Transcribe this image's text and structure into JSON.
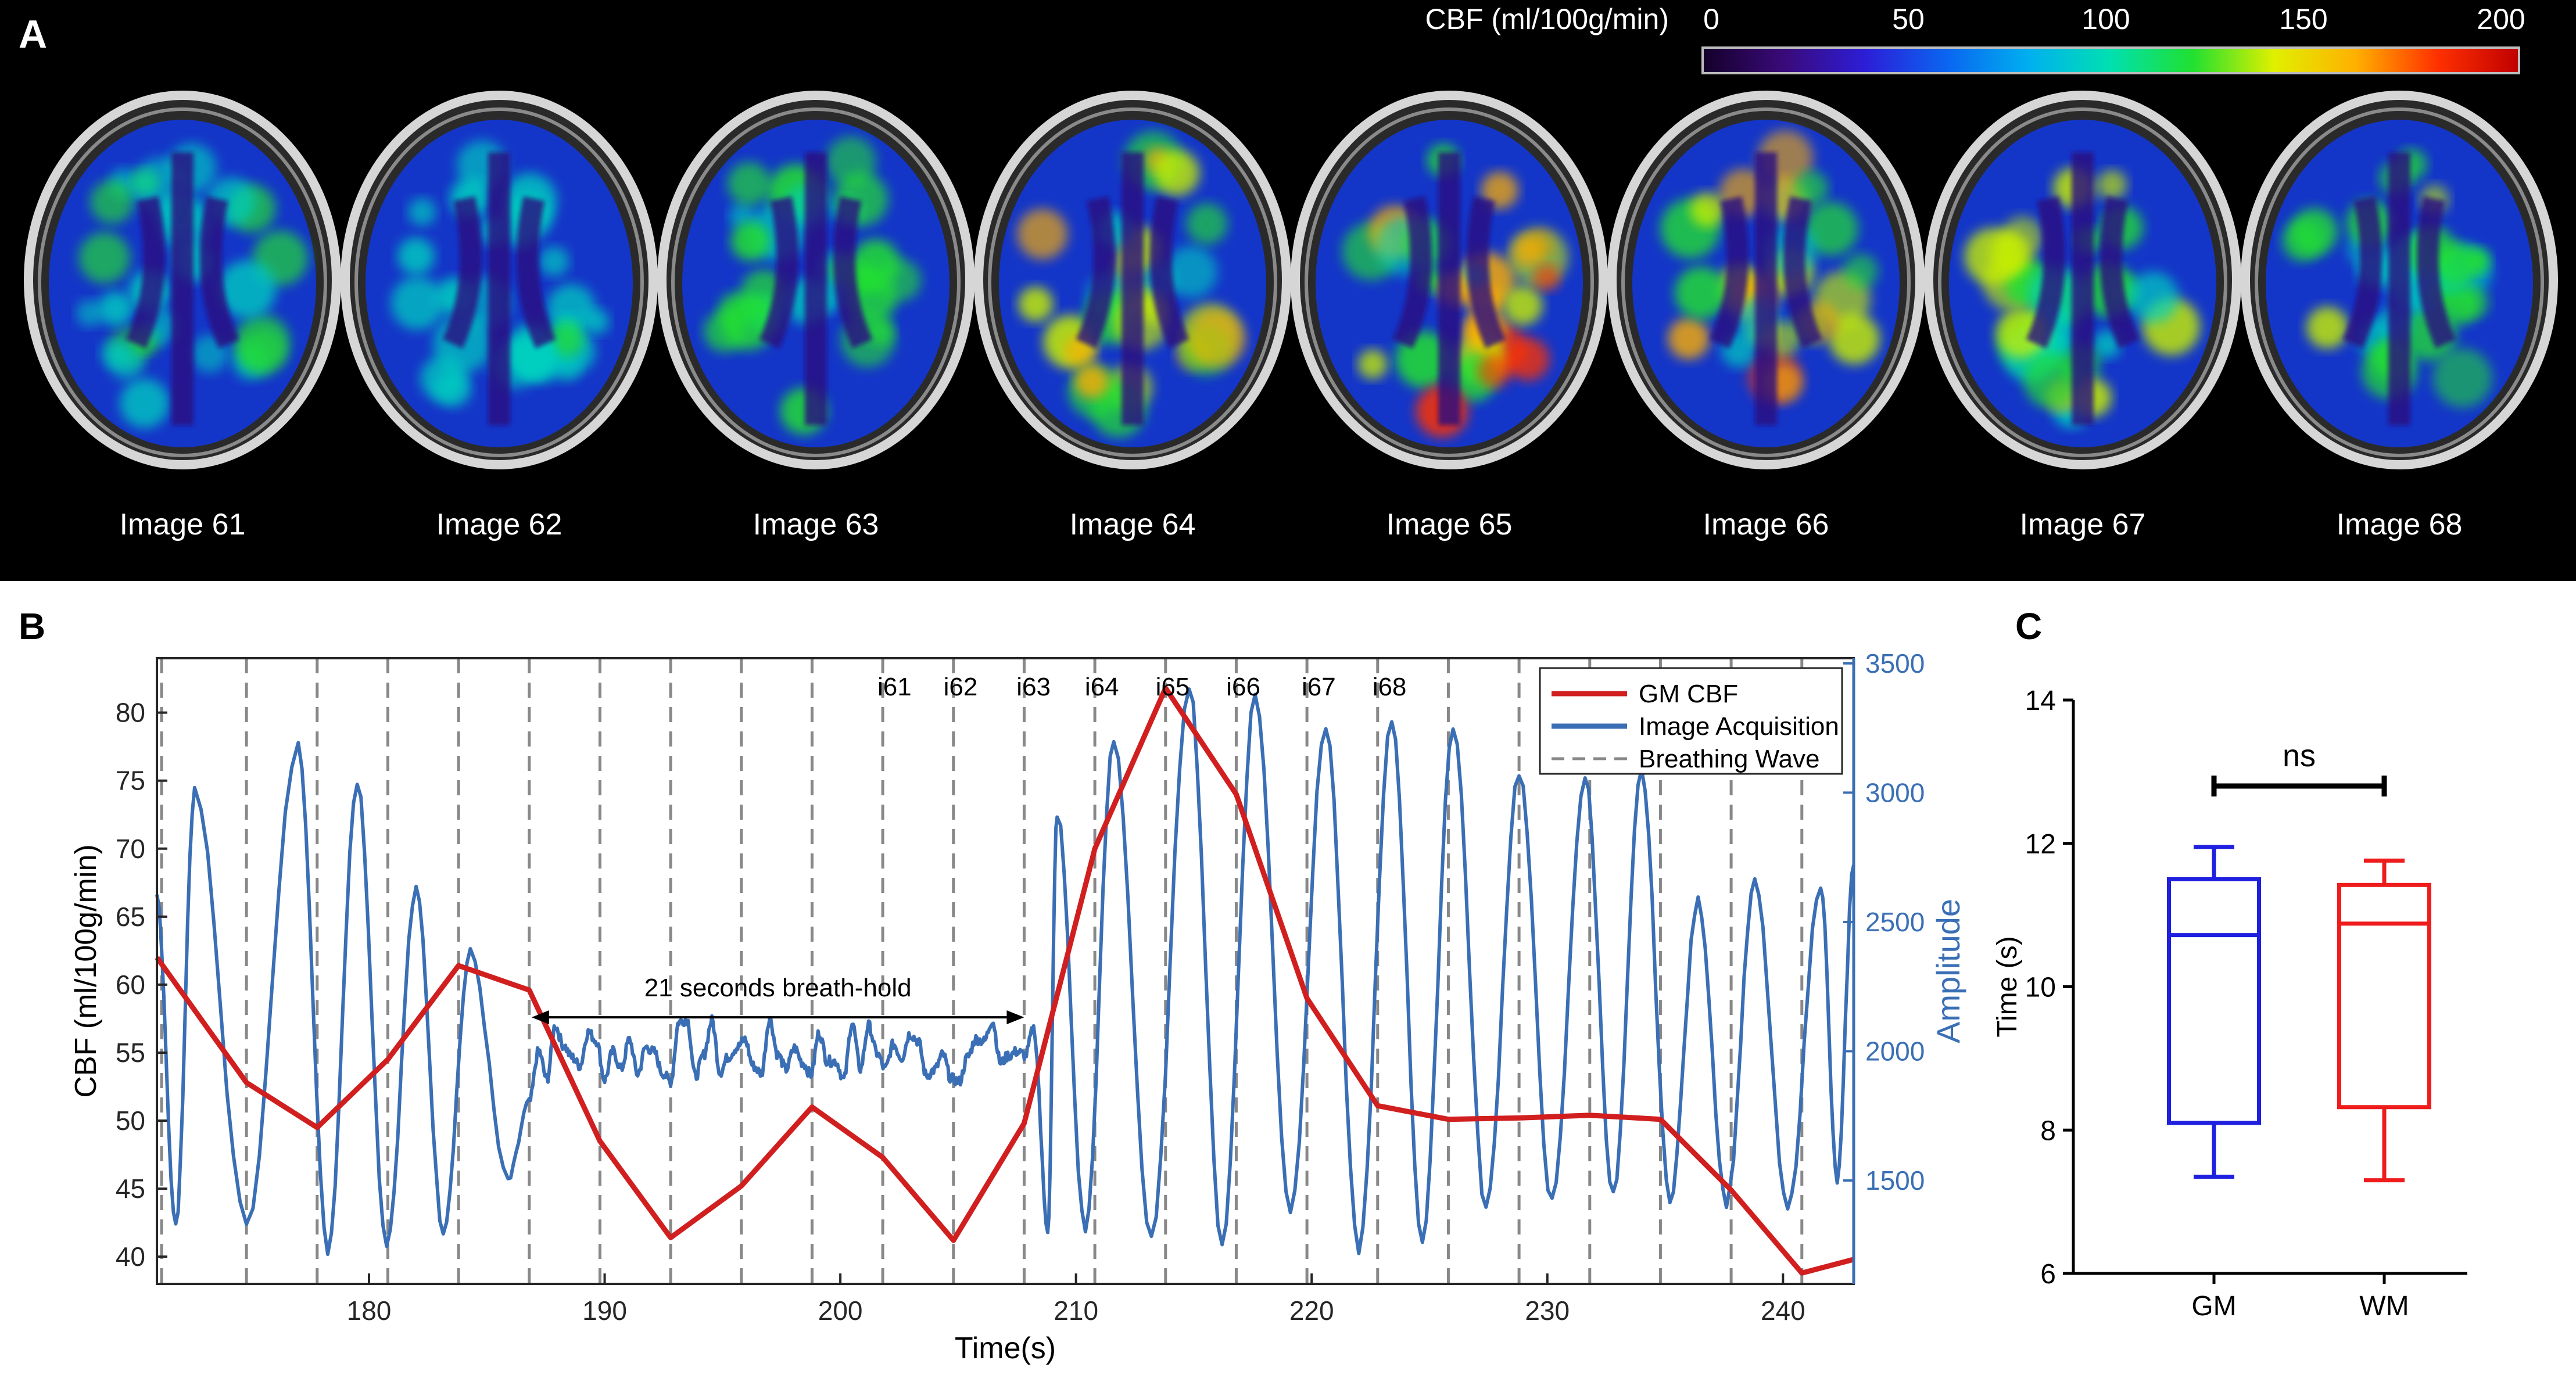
{
  "panel_labels": {
    "a": "A",
    "b": "B",
    "c": "C"
  },
  "colorbar": {
    "label": "CBF  (ml/100g/min)",
    "ticks": [
      "0",
      "50",
      "100",
      "150",
      "200"
    ],
    "stops": [
      "#14002a",
      "#3a0a7a",
      "#2c1ed8",
      "#0a66f0",
      "#00b0f0",
      "#00e0b0",
      "#20e030",
      "#e0f000",
      "#ffb000",
      "#ff3000",
      "#c00000"
    ]
  },
  "brain_images": [
    {
      "label": "Image 61",
      "level": 0.22
    },
    {
      "label": "Image 62",
      "level": 0.18
    },
    {
      "label": "Image 63",
      "level": 0.34
    },
    {
      "label": "Image 64",
      "level": 0.62
    },
    {
      "label": "Image 65",
      "level": 0.78
    },
    {
      "label": "Image 66",
      "level": 0.7
    },
    {
      "label": "Image 67",
      "level": 0.48
    },
    {
      "label": "Image 68",
      "level": 0.38
    }
  ],
  "chart_data": [
    {
      "type": "line",
      "xlabel": "Time(s)",
      "ylabel": "CBF (ml/100g/min)",
      "y2label": "Amplitude",
      "xlim": [
        171,
        243
      ],
      "ylim": [
        38,
        84
      ],
      "y2lim": [
        1100,
        3520
      ],
      "x_ticks": [
        "180",
        "190",
        "200",
        "210",
        "220",
        "230",
        "240"
      ],
      "y_ticks": [
        "40",
        "45",
        "50",
        "55",
        "60",
        "65",
        "70",
        "75",
        "80"
      ],
      "y2_ticks": [
        "1500",
        "2000",
        "2500",
        "3000",
        "3500"
      ],
      "legend": [
        "GM CBF",
        "Image Acquisition",
        "Breathing Wave"
      ],
      "legend_position": "top-right",
      "colors": {
        "gm_cbf": "#d11f1f",
        "breathing": "#3a6fb5",
        "acquisition": "#888888",
        "right_axis": "#3a6fb5"
      },
      "series": [
        {
          "name": "GM CBF",
          "x": [
            171,
            174.8,
            177.8,
            180.8,
            183.8,
            186.8,
            189.8,
            192.8,
            195.8,
            198.8,
            201.8,
            204.8,
            207.8,
            210.8,
            213.8,
            216.8,
            219.8,
            222.8,
            225.8,
            228.8,
            231.8,
            234.8,
            237.8,
            240.8,
            243
          ],
          "y": [
            62,
            52.8,
            49.5,
            54.5,
            61.4,
            59.6,
            48.5,
            41.4,
            45.2,
            51,
            47.3,
            41.2,
            49.8,
            70,
            81.8,
            74,
            59,
            51.1,
            50.1,
            50.2,
            50.4,
            50.1,
            44.9,
            38.8,
            39.8
          ]
        }
      ],
      "acquisition_times": [
        171.2,
        174.8,
        177.8,
        180.8,
        183.8,
        186.8,
        189.8,
        192.8,
        195.8,
        198.8,
        201.8,
        204.8,
        207.8,
        210.8,
        213.8,
        216.8,
        219.8,
        222.8,
        225.8,
        228.8,
        231.8,
        234.8,
        237.8,
        240.8
      ],
      "breathing_wave": {
        "peaks_before_hold": [
          {
            "x": 172.6,
            "y": 3000
          },
          {
            "x": 177,
            "y": 3180
          },
          {
            "x": 179.5,
            "y": 3040
          },
          {
            "x": 182,
            "y": 2620
          },
          {
            "x": 184.3,
            "y": 2380
          }
        ],
        "hold_range": [
          186.8,
          208.4
        ],
        "hold_level": 2000,
        "peaks_after_hold": [
          {
            "x": 209.2,
            "y": 2920
          },
          {
            "x": 211.6,
            "y": 3200
          },
          {
            "x": 214.8,
            "y": 3420
          },
          {
            "x": 217.6,
            "y": 3380
          },
          {
            "x": 220.6,
            "y": 3260
          },
          {
            "x": 223.4,
            "y": 3280
          },
          {
            "x": 226,
            "y": 3260
          },
          {
            "x": 228.8,
            "y": 3080
          },
          {
            "x": 231.6,
            "y": 3060
          },
          {
            "x": 234,
            "y": 3080
          },
          {
            "x": 236.4,
            "y": 2580
          },
          {
            "x": 238.8,
            "y": 2650
          },
          {
            "x": 241.6,
            "y": 2650
          }
        ],
        "end_value": 2720
      },
      "acquisition_labels": [
        {
          "text": "i61",
          "x": 202.3
        },
        {
          "text": "i62",
          "x": 205.1
        },
        {
          "text": "i63",
          "x": 208.2
        },
        {
          "text": "i64",
          "x": 211.1
        },
        {
          "text": "i65",
          "x": 214.1
        },
        {
          "text": "i66",
          "x": 217.1
        },
        {
          "text": "i67",
          "x": 220.3
        },
        {
          "text": "i68",
          "x": 223.3
        }
      ],
      "annotation": {
        "text": "21 seconds breath-hold",
        "x_start": 186.9,
        "x_end": 207.8,
        "y": 57.6
      }
    },
    {
      "type": "box",
      "ylabel": "Time (s)",
      "ylim": [
        6,
        14
      ],
      "y_ticks": [
        "6",
        "8",
        "10",
        "12",
        "14"
      ],
      "categories": [
        "GM",
        "WM"
      ],
      "boxes": [
        {
          "name": "GM",
          "min": 7.35,
          "q1": 8.1,
          "median": 10.72,
          "q3": 11.5,
          "max": 11.95,
          "color": "#1f1fe0"
        },
        {
          "name": "WM",
          "min": 7.3,
          "q1": 8.32,
          "median": 10.88,
          "q3": 11.42,
          "max": 11.76,
          "color": "#ee1c1c"
        }
      ],
      "significance": {
        "text": "ns",
        "y": 12.8
      }
    }
  ]
}
